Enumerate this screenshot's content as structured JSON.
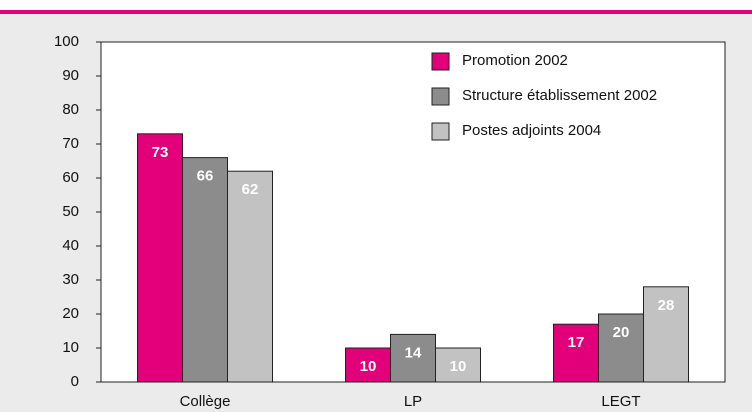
{
  "chart_data": {
    "type": "bar",
    "categories": [
      "Collège",
      "LP",
      "LEGT"
    ],
    "series": [
      {
        "name": "Promotion 2002",
        "color": "#e2007a",
        "values": [
          73,
          10,
          17
        ]
      },
      {
        "name": "Structure établissement 2002",
        "color": "#8c8c8c",
        "values": [
          66,
          14,
          20
        ]
      },
      {
        "name": "Postes adjoints 2004",
        "color": "#c2c2c2",
        "values": [
          62,
          10,
          28
        ]
      }
    ],
    "ylim": [
      0,
      100
    ],
    "yticks": [
      0,
      10,
      20,
      30,
      40,
      50,
      60,
      70,
      80,
      90,
      100
    ],
    "grid": false,
    "legend": "top-right"
  }
}
